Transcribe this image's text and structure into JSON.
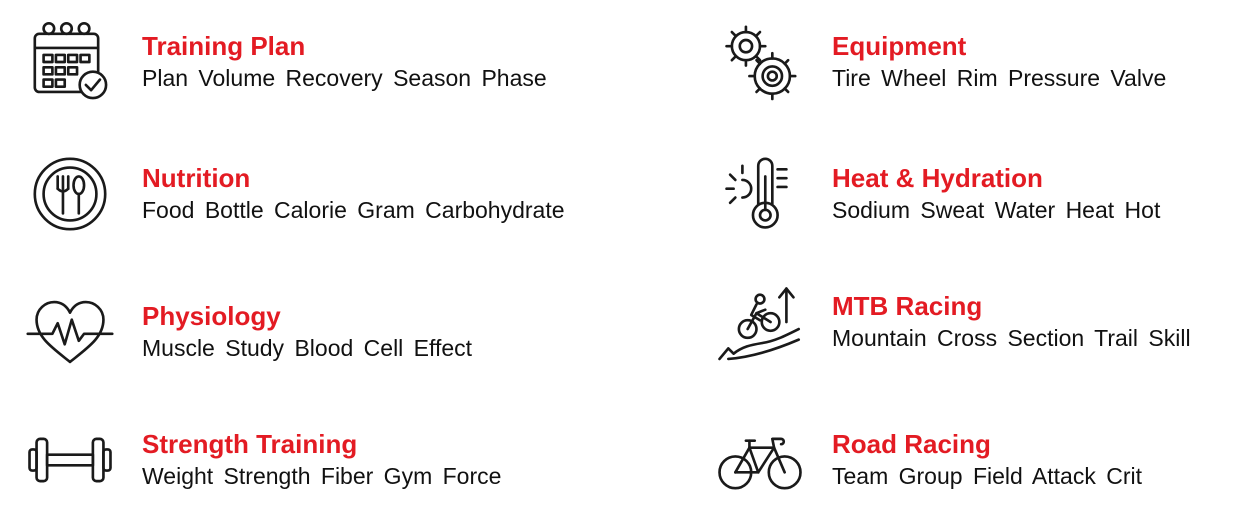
{
  "accent_color": "#e31b23",
  "icon_color": "#1a1a1a",
  "topics": [
    {
      "title": "Training Plan",
      "words": "Plan  Volume  Recovery  Season  Phase",
      "icon": "calendar-check-icon"
    },
    {
      "title": "Nutrition",
      "words": "Food  Bottle  Calorie  Gram  Carbohydrate",
      "icon": "plate-cutlery-icon"
    },
    {
      "title": "Physiology",
      "words": "Muscle  Study  Blood  Cell  Effect",
      "icon": "heart-pulse-icon"
    },
    {
      "title": "Strength Training",
      "words": "Weight  Strength  Fiber  Gym  Force",
      "icon": "dumbbell-icon"
    },
    {
      "title": "Equipment",
      "words": "Tire  Wheel  Rim  Pressure  Valve",
      "icon": "gears-icon"
    },
    {
      "title": "Heat & Hydration",
      "words": "Sodium  Sweat  Water  Heat  Hot",
      "icon": "sun-thermometer-icon"
    },
    {
      "title": "MTB Racing",
      "words": "Mountain  Cross  Section  Trail  Skill",
      "icon": "mountain-bike-icon"
    },
    {
      "title": "Road Racing",
      "words": "Team  Group  Field  Attack  Crit",
      "icon": "road-bicycle-icon"
    }
  ]
}
